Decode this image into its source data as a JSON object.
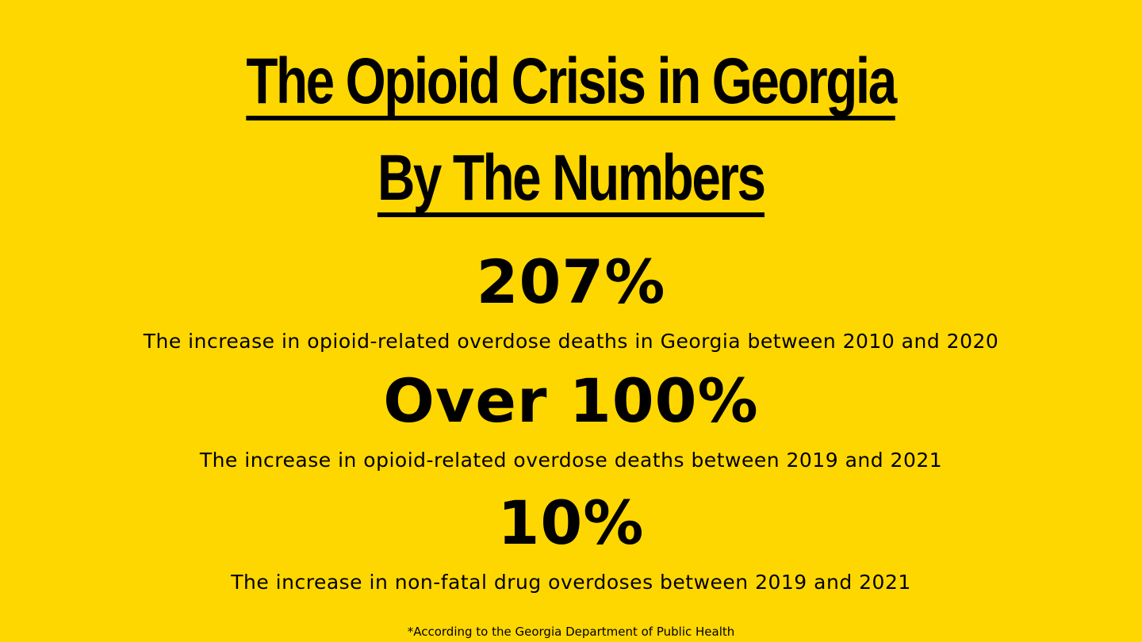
{
  "title": {
    "line1": "The Opioid Crisis in Georgia",
    "line2": "By The Numbers"
  },
  "stats": [
    {
      "value": "207%",
      "description": "The increase in opioid-related overdose deaths in Georgia between 2010 and 2020"
    },
    {
      "value": "Over 100%",
      "description": "The increase in opioid-related overdose deaths between 2019 and 2021"
    },
    {
      "value": "10%",
      "description": "The increase in non-fatal drug overdoses between 2019 and 2021"
    }
  ],
  "footnote": "*According to the Georgia Department of Public Health",
  "colors": {
    "background": "#FFD700",
    "text": "#000000"
  }
}
